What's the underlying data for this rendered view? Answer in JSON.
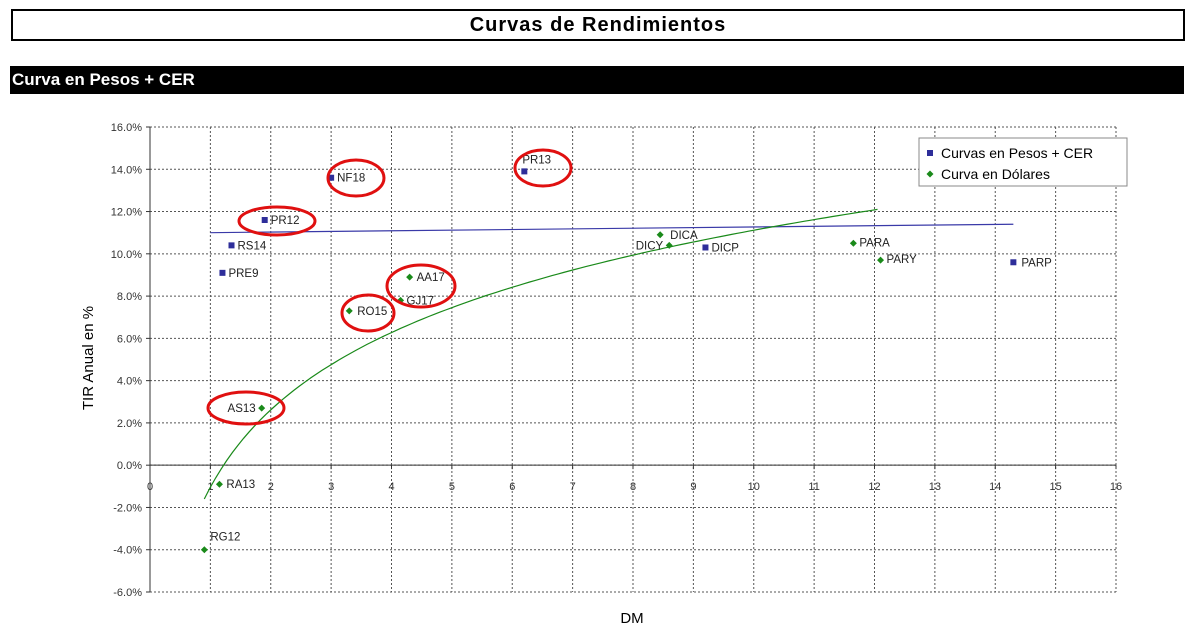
{
  "page": {
    "title": "Curvas de Rendimientos",
    "section": "Curva en Pesos + CER"
  },
  "chart_data": {
    "type": "scatter",
    "xlabel": "DM",
    "ylabel": "TIR Anual en %",
    "xlim": [
      0,
      16
    ],
    "ylim": [
      -6,
      16
    ],
    "x_ticks": [
      "0",
      "1",
      "2",
      "3",
      "4",
      "5",
      "6",
      "7",
      "8",
      "9",
      "10",
      "11",
      "12",
      "13",
      "14",
      "15",
      "16"
    ],
    "y_ticks": [
      "16.0%",
      "14.0%",
      "12.0%",
      "10.0%",
      "8.0%",
      "6.0%",
      "4.0%",
      "2.0%",
      "0.0%",
      "-2.0%",
      "-4.0%",
      "-6.0%"
    ],
    "grid": true,
    "legend_position": "top-right",
    "colors": {
      "pesos": "#2e2e9a",
      "dolares": "#1a8a1a",
      "highlight": "#e01010"
    },
    "series": [
      {
        "name": "Curvas en Pesos + CER",
        "marker": "square",
        "points": [
          {
            "label": "PR13",
            "x": 6.2,
            "y": 13.9
          },
          {
            "label": "NF18",
            "x": 3.0,
            "y": 13.6
          },
          {
            "label": "PR12",
            "x": 1.9,
            "y": 11.6
          },
          {
            "label": "RS14",
            "x": 1.35,
            "y": 10.4
          },
          {
            "label": "PRE9",
            "x": 1.2,
            "y": 9.1
          },
          {
            "label": "DICP",
            "x": 9.2,
            "y": 10.3
          },
          {
            "label": "PARP",
            "x": 14.3,
            "y": 9.6
          }
        ]
      },
      {
        "name": "Curva en Dólares",
        "marker": "diamond",
        "points": [
          {
            "label": "DICA",
            "x": 8.45,
            "y": 10.9
          },
          {
            "label": "DICY",
            "x": 8.6,
            "y": 10.4
          },
          {
            "label": "PARA",
            "x": 11.65,
            "y": 10.5
          },
          {
            "label": "PARY",
            "x": 12.1,
            "y": 9.7
          },
          {
            "label": "AA17",
            "x": 4.3,
            "y": 8.9
          },
          {
            "label": "GJ17",
            "x": 4.15,
            "y": 7.8
          },
          {
            "label": "RO15",
            "x": 3.3,
            "y": 7.3
          },
          {
            "label": "AS13",
            "x": 1.85,
            "y": 2.7
          },
          {
            "label": "RA13",
            "x": 1.15,
            "y": -0.9
          },
          {
            "label": "RG12",
            "x": 0.9,
            "y": -4.0
          }
        ]
      }
    ],
    "trendlines": [
      {
        "series": "Curvas en Pesos + CER",
        "kind": "linear",
        "from": [
          1.0,
          11.0
        ],
        "to": [
          14.3,
          11.4
        ]
      },
      {
        "series": "Curva en Dólares",
        "kind": "logarithmic",
        "x_range": [
          0.9,
          12.05
        ],
        "y_at_start": -1.6,
        "y_at_end": 12.1
      }
    ],
    "highlighted": [
      "PR13",
      "NF18",
      "PR12",
      "AA17",
      "RO15",
      "AS13"
    ]
  }
}
